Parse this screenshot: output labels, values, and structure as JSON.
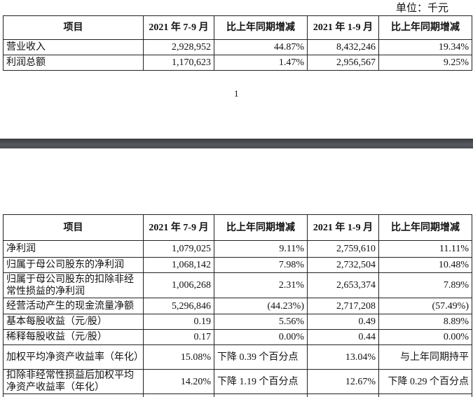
{
  "unit_label": "单位：千元",
  "page_number": "1",
  "headers": [
    "项目",
    "2021 年 7-9 月",
    "比上年同期增减",
    "2021 年 1-9 月",
    "比上年同期增减"
  ],
  "table1": [
    [
      "营业收入",
      "2,928,952",
      "44.87%",
      "8,432,246",
      "19.34%"
    ],
    [
      "利润总额",
      "1,170,623",
      "1.47%",
      "2,956,567",
      "9.25%"
    ]
  ],
  "table2": [
    [
      "净利润",
      "1,079,025",
      "9.11%",
      "2,759,610",
      "11.11%"
    ],
    [
      "归属于母公司股东的净利润",
      "1,068,142",
      "7.98%",
      "2,732,504",
      "10.48%"
    ],
    [
      "归属于母公司股东的扣除非经常性损益的净利润",
      "1,006,268",
      "2.31%",
      "2,653,374",
      "7.89%"
    ],
    [
      "经营活动产生的现金流量净额",
      "5,296,846",
      "(44.23%)",
      "2,717,208",
      "(57.49%)"
    ],
    [
      "基本每股收益（元/股）",
      "0.19",
      "5.56%",
      "0.49",
      "8.89%"
    ],
    [
      "稀释每股收益（元/股）",
      "0.17",
      "0.00%",
      "0.44",
      "0.00%"
    ],
    [
      "加权平均净资产收益率（年化）",
      "15.08%",
      "下降 0.39 个百分点",
      "13.04%",
      "与上年同期持平"
    ],
    [
      "扣除非经常性损益后加权平均净资产收益率（年化）",
      "14.20%",
      "下降 1.19 个百分点",
      "12.67%",
      "下降 0.29 个百分点"
    ]
  ]
}
